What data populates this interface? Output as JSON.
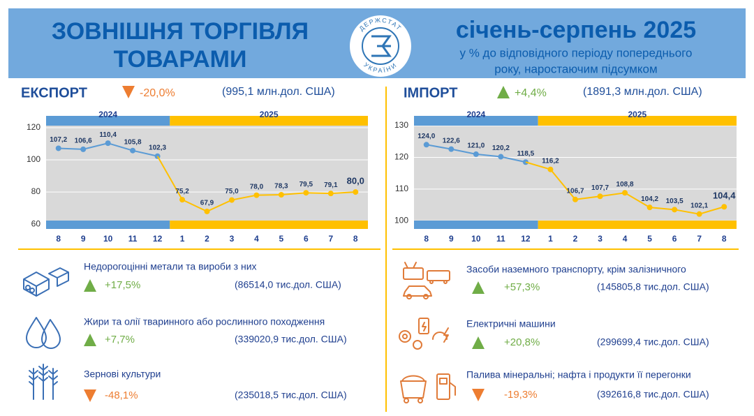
{
  "header": {
    "title_line1": "ЗОВНІШНЯ ТОРГІВЛЯ",
    "title_line2": "ТОВАРАМИ",
    "logo_top": "ДЕРЖСТАТ",
    "logo_bottom": "УКРАЇНИ",
    "period": "січень-серпень 2025",
    "subtitle_line1": "у % до відповідного періоду попереднього",
    "subtitle_line2": "року, наростаючим підсумком"
  },
  "chart_data": [
    {
      "type": "line",
      "title": "ЕКСПОРТ",
      "change": "-20,0%",
      "total": "(995,1 млн.дол. США)",
      "categories": [
        "8",
        "9",
        "10",
        "11",
        "12",
        "1",
        "2",
        "3",
        "4",
        "5",
        "6",
        "7",
        "8"
      ],
      "series": [
        {
          "name": "2024",
          "color": "#5b9bd5",
          "values": [
            107.2,
            106.6,
            110.4,
            105.8,
            102.3,
            null,
            null,
            null,
            null,
            null,
            null,
            null,
            null
          ],
          "value_labels": [
            "107,2",
            "106,6",
            "110,4",
            "105,8",
            "102,3",
            null,
            null,
            null,
            null,
            null,
            null,
            null,
            null
          ]
        },
        {
          "name": "2025",
          "color": "#ffc000",
          "values": [
            null,
            null,
            null,
            null,
            null,
            75.2,
            67.9,
            75.0,
            78.0,
            78.3,
            79.5,
            79.1,
            80.0
          ],
          "value_labels": [
            null,
            null,
            null,
            null,
            null,
            "75,2",
            "67,9",
            "75,0",
            "78,0",
            "78,3",
            "79,5",
            "79,1",
            "80,0"
          ]
        }
      ],
      "ylim": [
        57,
        127.4
      ],
      "yticks": [
        60,
        80,
        100,
        120
      ],
      "grid": true
    },
    {
      "type": "line",
      "title": "ІМПОРТ",
      "change": "+4,4%",
      "total": "(1891,3 млн.дол. США)",
      "categories": [
        "8",
        "9",
        "10",
        "11",
        "12",
        "1",
        "2",
        "3",
        "4",
        "5",
        "6",
        "7",
        "8"
      ],
      "series": [
        {
          "name": "2024",
          "color": "#5b9bd5",
          "values": [
            124.0,
            122.6,
            121.0,
            120.2,
            118.5,
            null,
            null,
            null,
            null,
            null,
            null,
            null,
            null
          ],
          "value_labels": [
            "124,0",
            "122,6",
            "121,0",
            "120,2",
            "118,5",
            null,
            null,
            null,
            null,
            null,
            null,
            null,
            null
          ]
        },
        {
          "name": "2025",
          "color": "#ffc000",
          "values": [
            null,
            null,
            null,
            null,
            null,
            116.2,
            106.7,
            107.7,
            108.8,
            104.2,
            103.5,
            102.1,
            104.4
          ],
          "value_labels": [
            null,
            null,
            null,
            null,
            null,
            "116,2",
            "106,7",
            "107,7",
            "108,8",
            "104,2",
            "103,5",
            "102,1",
            "104,4"
          ]
        }
      ],
      "ylim": [
        97.4,
        133.1
      ],
      "yticks": [
        100,
        110,
        120,
        130
      ],
      "grid": true
    }
  ],
  "products": {
    "export": [
      {
        "name": "Недорогоцінні метали та вироби з них",
        "change": "+17,5%",
        "value": "(86514,0 тис.дол. США)"
      },
      {
        "name": "Жири та олії тваринного або рослинного походження",
        "change": "+7,7%",
        "value": "(339020,9 тис.дол. США)"
      },
      {
        "name": "Зернові культури",
        "change": "-48,1%",
        "value": "(235018,5 тис.дол. США)"
      }
    ],
    "import": [
      {
        "name": "Засоби наземного транспорту, крім залізничного",
        "change": "+57,3%",
        "value": "(145805,8 тис.дол. США)"
      },
      {
        "name": "Електричні машини",
        "change": "+20,8%",
        "value": "(299699,4 тис.дол. США)"
      },
      {
        "name": "Палива мінеральні; нафта і продукти її перегонки",
        "change": "-19,3%",
        "value": "(392616,8 тис.дол. США)"
      }
    ]
  }
}
